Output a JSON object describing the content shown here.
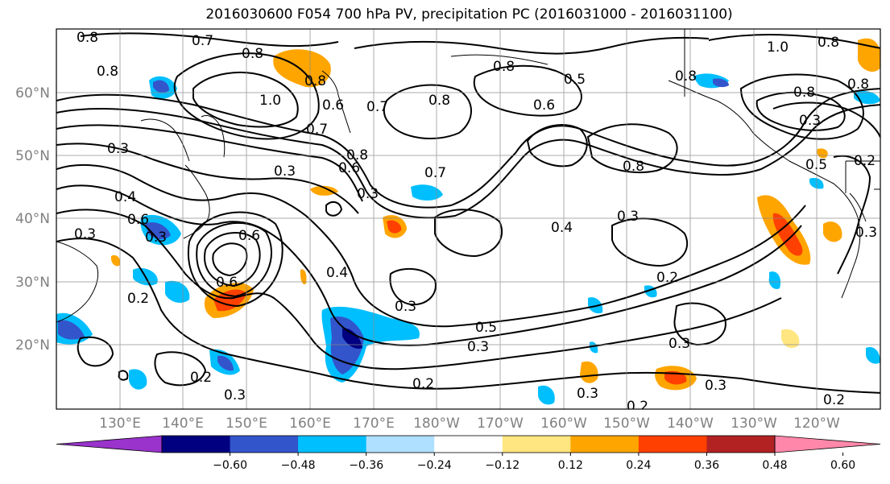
{
  "title": "2016030600 F054 700 hPa PV, precipitation PC (2016031000 - 2016031100)",
  "lat_labels": [
    "20°N",
    "30°N",
    "40°N",
    "50°N",
    "60°N"
  ],
  "lon_labels": [
    "130°E",
    "140°E",
    "150°E",
    "160°E",
    "170°E",
    "180°W",
    "170°W",
    "160°W",
    "150°W",
    "140°W",
    "130°W",
    "120°W"
  ],
  "colorbar": {
    "ticks": [
      "−0.60",
      "−0.48",
      "−0.36",
      "−0.24",
      "−0.12",
      "0.12",
      "0.24",
      "0.36",
      "0.48",
      "0.60"
    ],
    "colors": [
      "#9933cc",
      "#000080",
      "#3355cc",
      "#00bfff",
      "#b0e0ff",
      "#ffffff",
      "#ffe680",
      "#ffa500",
      "#ff4000",
      "#b22222",
      "#ff88aa"
    ]
  },
  "contour_labels": [
    "0.8",
    "0.7",
    "0.8",
    "0.8",
    "1.0",
    "0.8",
    "0.6",
    "0.8",
    "0.5",
    "0.6",
    "0.7",
    "0.8",
    "1.0",
    "0.8",
    "0.8",
    "0.3",
    "0.3",
    "0.7",
    "0.8",
    "0.6",
    "0.4",
    "0.3",
    "0.3",
    "0.3",
    "0.6",
    "0.7",
    "0.8",
    "0.3",
    "0.2",
    "0.3",
    "0.4",
    "0.3",
    "0.6",
    "0.6",
    "0.4",
    "0.5",
    "0.3",
    "0.5",
    "0.2",
    "0.2",
    "0.3",
    "0.2",
    "0.3",
    "0.2",
    "0.2",
    "0.3",
    "0.3",
    "0.2",
    "0.8",
    "0.8",
    "0.3"
  ]
}
